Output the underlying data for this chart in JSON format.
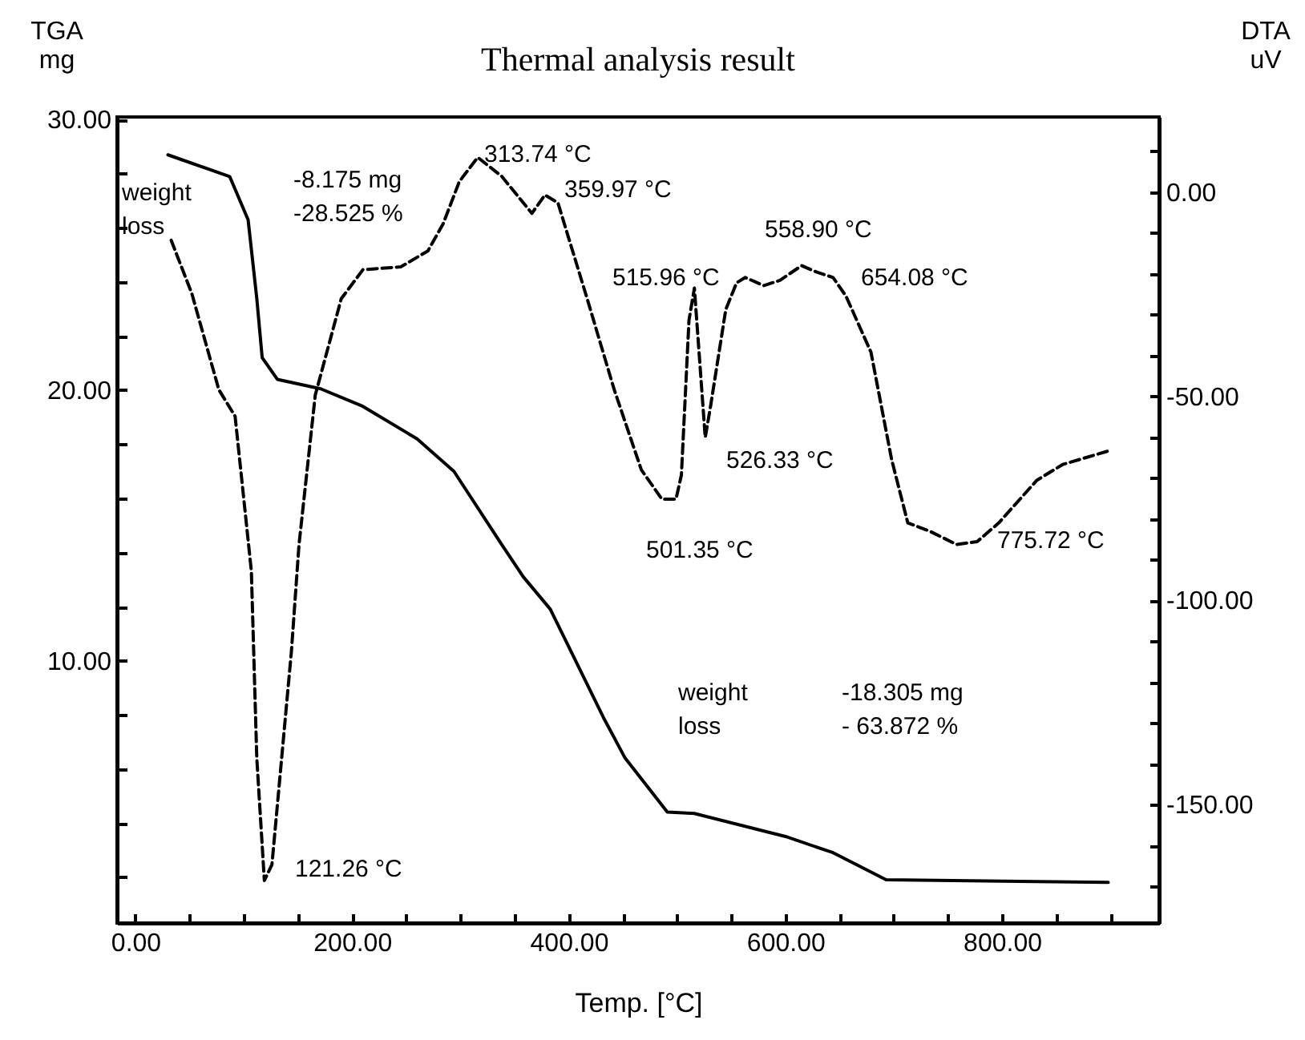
{
  "chart_data": {
    "type": "line",
    "title": "Thermal analysis result",
    "xlabel": "Temp. [°C]",
    "ylabel": "TGA\nmg",
    "y2label": "DTA\nuV",
    "xlim": [
      -17,
      945
    ],
    "xticks": [
      {
        "value": 0,
        "label": "0.00"
      },
      {
        "value": 50,
        "label": null
      },
      {
        "value": 100,
        "label": null
      },
      {
        "value": 150,
        "label": null
      },
      {
        "value": 200,
        "label": "200.00"
      },
      {
        "value": 250,
        "label": null
      },
      {
        "value": 300,
        "label": null
      },
      {
        "value": 350,
        "label": null
      },
      {
        "value": 400,
        "label": "400.00"
      },
      {
        "value": 450,
        "label": null
      },
      {
        "value": 500,
        "label": null
      },
      {
        "value": 550,
        "label": null
      },
      {
        "value": 600,
        "label": "600.00"
      },
      {
        "value": 650,
        "label": null
      },
      {
        "value": 700,
        "label": null
      },
      {
        "value": 750,
        "label": null
      },
      {
        "value": 800,
        "label": "800.00"
      },
      {
        "value": 850,
        "label": null
      },
      {
        "value": 900,
        "label": null
      }
    ],
    "ylim": [
      0.3,
      30.1
    ],
    "yticks": [
      {
        "value": 2,
        "label": null
      },
      {
        "value": 4,
        "label": null
      },
      {
        "value": 6,
        "label": null
      },
      {
        "value": 8,
        "label": null
      },
      {
        "value": 10,
        "label": "10.00"
      },
      {
        "value": 12,
        "label": null
      },
      {
        "value": 14,
        "label": null
      },
      {
        "value": 16,
        "label": null
      },
      {
        "value": 18,
        "label": null
      },
      {
        "value": 20,
        "label": "20.00"
      },
      {
        "value": 22,
        "label": null
      },
      {
        "value": 24,
        "label": null
      },
      {
        "value": 26,
        "label": null
      },
      {
        "value": 28,
        "label": null
      },
      {
        "value": 30,
        "label": "30.00"
      }
    ],
    "y2lim": [
      -179,
      18.4
    ],
    "y2ticks": [
      {
        "value": 10,
        "label": null
      },
      {
        "value": 0,
        "label": "0.00"
      },
      {
        "value": -10,
        "label": null
      },
      {
        "value": -20,
        "label": null
      },
      {
        "value": -30,
        "label": null
      },
      {
        "value": -40,
        "label": null
      },
      {
        "value": -50,
        "label": "-50.00"
      },
      {
        "value": -60,
        "label": null
      },
      {
        "value": -70,
        "label": null
      },
      {
        "value": -80,
        "label": null
      },
      {
        "value": -90,
        "label": null
      },
      {
        "value": -100,
        "label": "-100.00"
      },
      {
        "value": -110,
        "label": null
      },
      {
        "value": -120,
        "label": null
      },
      {
        "value": -130,
        "label": null
      },
      {
        "value": -140,
        "label": null
      },
      {
        "value": -150,
        "label": "-150.00"
      },
      {
        "value": -160,
        "label": null
      },
      {
        "value": -170,
        "label": null
      }
    ],
    "grid": false,
    "marker": "none",
    "series": [
      {
        "color": "#000000",
        "line_style": "solid",
        "x": [
          30,
          87,
          104,
          112,
          117,
          131,
          171,
          210,
          260,
          294,
          338,
          358,
          383,
          432,
          452,
          491,
          516,
          600,
          644,
          693,
          898
        ],
        "values": [
          28.7,
          27.9,
          26.3,
          23.4,
          21.2,
          20.4,
          20.05,
          19.4,
          18.2,
          17.0,
          14.3,
          13.1,
          11.9,
          7.9,
          6.4,
          4.4,
          4.35,
          3.5,
          2.9,
          1.9,
          1.8
        ]
      },
      {
        "color": "#000000",
        "line_style": "dashed",
        "axis": "y2",
        "x": [
          33,
          52,
          77,
          92,
          107,
          112,
          119,
          126,
          144,
          151,
          166,
          190,
          210,
          245,
          270,
          284,
          299,
          316,
          338,
          366,
          378,
          390,
          417,
          442,
          467,
          486,
          499,
          504,
          511,
          516,
          526,
          531,
          545,
          555,
          563,
          580,
          595,
          615,
          629,
          644,
          656,
          679,
          698,
          713,
          733,
          758,
          777,
          797,
          832,
          856,
          898
        ],
        "values": [
          -11.8,
          -24.8,
          -48.4,
          -54.9,
          -92.8,
          -138.5,
          -168.6,
          -164.7,
          -112.4,
          -86.3,
          -49.7,
          -26.1,
          -19,
          -18.3,
          -14.4,
          -7.8,
          2.6,
          8.5,
          3.9,
          -5.2,
          -0.7,
          -2.6,
          -26.1,
          -48.4,
          -68,
          -75.2,
          -75.2,
          -69.3,
          -31.4,
          -23.5,
          -60.1,
          -52.3,
          -28.7,
          -22.2,
          -20.9,
          -22.9,
          -21.6,
          -18,
          -19.6,
          -20.9,
          -25.5,
          -39.2,
          -65.4,
          -81,
          -83,
          -86.3,
          -85.6,
          -81,
          -70.6,
          -66.7,
          -63.4
        ]
      }
    ],
    "annotations": [
      "weight\nloss",
      "-8.175 mg\n-28.525 %",
      "313.74 °C",
      "359.97 °C",
      "515.96 °C",
      "558.90 °C",
      "654.08 °C",
      "526.33 °C",
      "501.35 °C",
      "775.72 °C",
      "121.26 °C",
      "weight\nloss",
      "-18.305 mg\n- 63.872 %"
    ]
  }
}
